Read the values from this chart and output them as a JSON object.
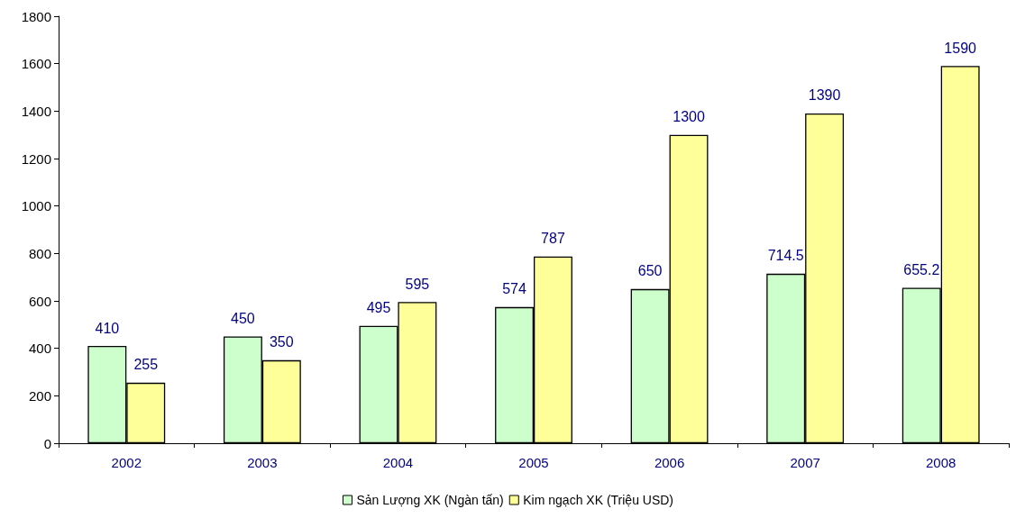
{
  "chart_data": {
    "type": "bar",
    "categories": [
      "2002",
      "2003",
      "2004",
      "2005",
      "2006",
      "2007",
      "2008"
    ],
    "series": [
      {
        "name": "Sản Lượng XK (Ngàn tấn)",
        "color": "#ccffcc",
        "values": [
          410,
          450,
          495,
          574,
          650,
          714.5,
          655.2
        ]
      },
      {
        "name": "Kim ngạch XK (Triệu USD)",
        "color": "#ffff99",
        "values": [
          255,
          350,
          595,
          787,
          1300,
          1390,
          1590
        ]
      }
    ],
    "ylim": [
      0,
      1800
    ],
    "yticks": [
      0,
      200,
      400,
      600,
      800,
      1000,
      1200,
      1400,
      1600,
      1800
    ],
    "grid": false,
    "legend": "bottom",
    "data_labels": true
  }
}
